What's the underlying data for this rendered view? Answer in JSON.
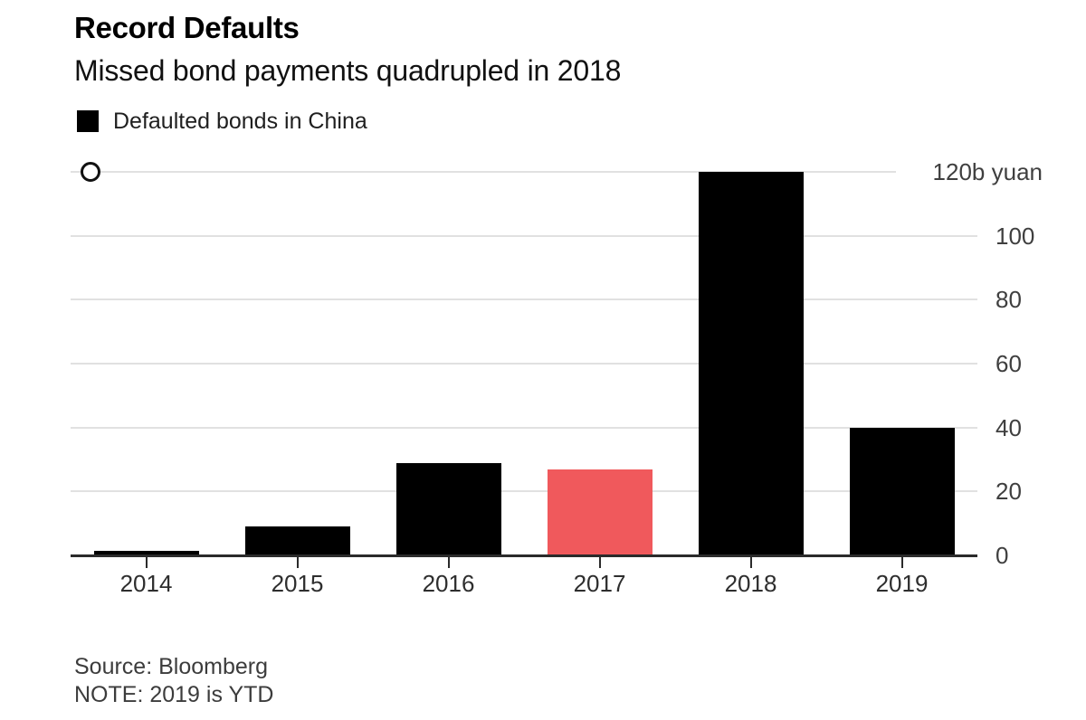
{
  "chart_data": {
    "type": "bar",
    "title": "Record Defaults",
    "subtitle": "Missed bond payments quadrupled in 2018",
    "legend": [
      {
        "label": "Defaulted bonds in China",
        "color": "#000000"
      }
    ],
    "categories": [
      "2014",
      "2015",
      "2016",
      "2017",
      "2018",
      "2019"
    ],
    "values": [
      1.5,
      9,
      29,
      27,
      120,
      40
    ],
    "bar_colors": [
      "#000000",
      "#000000",
      "#000000",
      "#F0595C",
      "#000000",
      "#000000"
    ],
    "highlight_color": "#F0595C",
    "bar_color": "#000000",
    "xlabel": "",
    "ylabel": "",
    "unit_label": "120b yuan",
    "yticks": [
      0,
      20,
      40,
      60,
      80,
      100,
      120
    ],
    "ylim": [
      0,
      120
    ],
    "grid": "horizontal",
    "gridline_color": "#e1e1e1",
    "axis_line_color": "#2b2b2b",
    "legend_position": "top-left",
    "y_axis_side": "right",
    "source": "Source: Bloomberg",
    "note": "NOTE: 2019 is YTD"
  }
}
